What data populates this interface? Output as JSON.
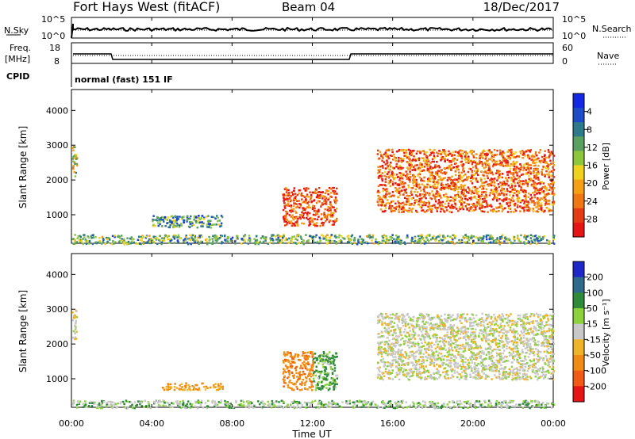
{
  "header": {
    "station": "Fort Hays West (fitACF)",
    "beam": "Beam 04",
    "date": "18/Dec/2017"
  },
  "noise_panel": {
    "left_label": "N.Sky",
    "left_ticks": [
      "10^5",
      "10^0"
    ],
    "right_ticks": [
      "10^5",
      "10^0"
    ],
    "right_label": "N.Search"
  },
  "freq_panel": {
    "left_label_1": "Freq.",
    "left_label_2": "[MHz]",
    "left_ticks": [
      "18",
      "8"
    ],
    "right_ticks": [
      "60",
      "0"
    ],
    "right_label": "Nave"
  },
  "cpid": {
    "label": "CPID",
    "mode": "normal (fast) 151 IF"
  },
  "x_axis": {
    "label": "Time UT",
    "ticks": [
      "00:00",
      "04:00",
      "08:00",
      "12:00",
      "16:00",
      "20:00",
      "00:00"
    ]
  },
  "chart_data": [
    {
      "type": "heatmap",
      "panel": "power",
      "ylabel": "Slant Range [km]",
      "yticks": [
        "1000",
        "2000",
        "3000",
        "4000"
      ],
      "ylim": [
        180,
        4600
      ],
      "xlim_hours": [
        0,
        24
      ],
      "colorbar": {
        "label": "Power [dB]",
        "ticks": [
          "4",
          "8",
          "12",
          "16",
          "20",
          "24",
          "28"
        ],
        "colors": [
          "#1428e6",
          "#1e4cc8",
          "#2f7a8a",
          "#5aa060",
          "#8cc63c",
          "#f0d21e",
          "#f5a014",
          "#f07814",
          "#e63c14",
          "#e61414"
        ]
      },
      "regions": [
        {
          "t0": 0.0,
          "t1": 0.25,
          "r0": 2100,
          "r1": 3000,
          "value": 14
        },
        {
          "t0": 4.0,
          "t1": 7.5,
          "r0": 650,
          "r1": 1000,
          "value": 8
        },
        {
          "t0": 10.5,
          "t1": 13.2,
          "r0": 700,
          "r1": 1800,
          "value": 24
        },
        {
          "t0": 15.2,
          "t1": 24.0,
          "r0": 1100,
          "r1": 2900,
          "value": 22
        },
        {
          "t0": 0.0,
          "t1": 24.0,
          "r0": 180,
          "r1": 450,
          "value": 10
        }
      ]
    },
    {
      "type": "heatmap",
      "panel": "velocity",
      "ylabel": "Slant Range [km]",
      "yticks": [
        "1000",
        "2000",
        "3000",
        "4000"
      ],
      "ylim": [
        180,
        4600
      ],
      "xlim_hours": [
        0,
        24
      ],
      "colorbar": {
        "label": "Velocity [m s⁻¹]",
        "ticks": [
          "200",
          "100",
          "50",
          "15",
          "-15",
          "-50",
          "-100",
          "-200"
        ],
        "colors": [
          "#1e28c8",
          "#2f6a8e",
          "#2f8a3a",
          "#8cd23c",
          "#c8c8c8",
          "#f0b428",
          "#f08c14",
          "#f05a14",
          "#e61414"
        ]
      },
      "regions": [
        {
          "t0": 0.0,
          "t1": 0.25,
          "r0": 2100,
          "r1": 3000,
          "value": 0
        },
        {
          "t0": 4.5,
          "t1": 7.5,
          "r0": 700,
          "r1": 900,
          "value": -60
        },
        {
          "t0": 10.5,
          "t1": 12.0,
          "r0": 700,
          "r1": 1800,
          "value": -80
        },
        {
          "t0": 12.0,
          "t1": 13.2,
          "r0": 700,
          "r1": 1800,
          "value": 40
        },
        {
          "t0": 15.2,
          "t1": 24.0,
          "r0": 1000,
          "r1": 2900,
          "value": 0
        },
        {
          "t0": 0.0,
          "t1": 24.0,
          "r0": 180,
          "r1": 400,
          "value": 20
        }
      ]
    }
  ]
}
